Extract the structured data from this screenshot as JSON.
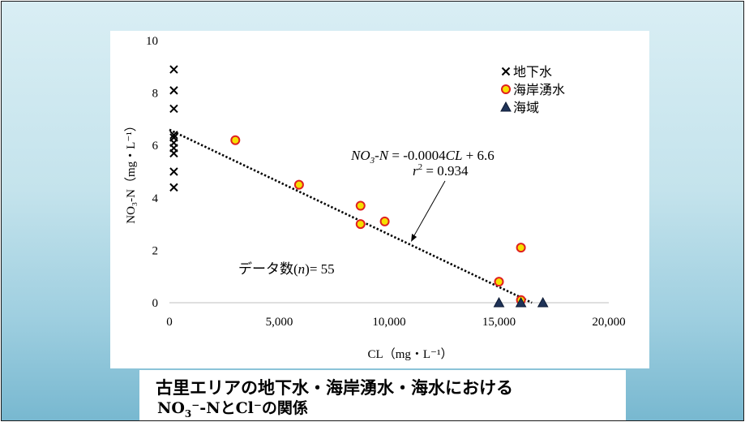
{
  "caption": {
    "line1": "古里エリアの地下水・海岸湧水・海水における",
    "line2_a": "NO",
    "line2_sub": "3",
    "line2_b": "⁻-NとCl⁻の関係"
  },
  "chart_data": {
    "type": "scatter",
    "title": "",
    "xlabel": "CL（mg・L⁻¹）",
    "ylabel": "NO₃-N（mg・L⁻¹）",
    "xlim": [
      0,
      20000
    ],
    "ylim": [
      0,
      10
    ],
    "x_ticks": [
      0,
      5000,
      10000,
      15000,
      20000
    ],
    "x_tick_labels": [
      "0",
      "5,000",
      "10,000",
      "15,000",
      "20,000"
    ],
    "y_ticks": [
      0,
      2,
      4,
      6,
      8,
      10
    ],
    "y_tick_labels": [
      "0",
      "2",
      "4",
      "6",
      "8",
      "10"
    ],
    "grid": false,
    "legend_position": "top-right",
    "series": [
      {
        "name": "地下水",
        "marker": "x",
        "color": "#000000",
        "points": [
          {
            "x": 200,
            "y": 8.9
          },
          {
            "x": 200,
            "y": 8.1
          },
          {
            "x": 200,
            "y": 7.4
          },
          {
            "x": 200,
            "y": 6.4
          },
          {
            "x": 200,
            "y": 6.3
          },
          {
            "x": 200,
            "y": 6.1
          },
          {
            "x": 200,
            "y": 5.9
          },
          {
            "x": 200,
            "y": 5.7
          },
          {
            "x": 200,
            "y": 5.0
          },
          {
            "x": 200,
            "y": 4.4
          }
        ]
      },
      {
        "name": "海岸湧水",
        "marker": "circle",
        "color": "#f5e000",
        "edge_color": "#e02020",
        "points": [
          {
            "x": 3000,
            "y": 6.2
          },
          {
            "x": 5900,
            "y": 4.5
          },
          {
            "x": 8700,
            "y": 3.7
          },
          {
            "x": 8700,
            "y": 3.0
          },
          {
            "x": 9800,
            "y": 3.1
          },
          {
            "x": 15000,
            "y": 0.8
          },
          {
            "x": 16000,
            "y": 2.1
          },
          {
            "x": 16000,
            "y": 0.1
          }
        ]
      },
      {
        "name": "海域",
        "marker": "triangle",
        "color": "#1f3358",
        "points": [
          {
            "x": 15000,
            "y": 0.0
          },
          {
            "x": 16000,
            "y": 0.0
          },
          {
            "x": 17000,
            "y": 0.0
          }
        ]
      }
    ],
    "regression": {
      "slope": -0.0004,
      "intercept": 6.6,
      "x_range": [
        0,
        16500
      ],
      "style": "dotted",
      "equation_lhs": "NO",
      "equation_lhs_sub": "3",
      "equation_lhs_tail": "-N",
      "equation_rhs": " = -0.0004",
      "equation_var": "CL",
      "equation_const": " + 6.6",
      "r2_label": "r",
      "r2_sup": "2",
      "r2_value": " = 0.934",
      "annotation_point": {
        "x": 11000,
        "y": 2.2
      }
    },
    "note": {
      "prefix": "データ数(",
      "var": "n",
      "suffix": ")= 55"
    }
  }
}
